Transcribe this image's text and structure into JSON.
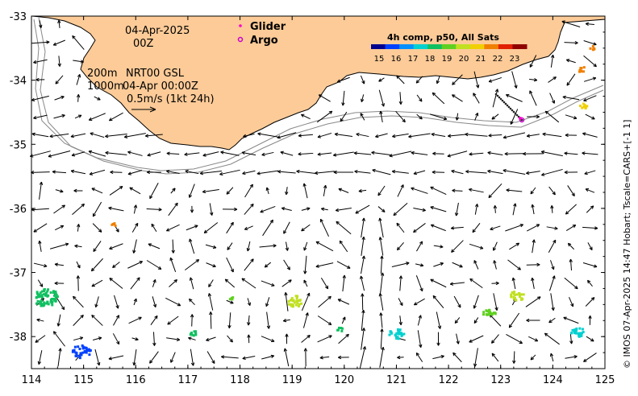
{
  "date_label": "04-Apr-2025",
  "time_label": "00Z",
  "contour_200": "200m",
  "contour_1000": "1000m",
  "product_label": "NRT00 GSL",
  "product_time": "04-Apr 00:00Z",
  "scale_arrow_label": "0.5m/s (1kt 24h)",
  "legend": {
    "glider": "Glider",
    "argo": "Argo",
    "glider_color": "#ff00cc",
    "argo_color": "#cc00cc"
  },
  "colorbar": {
    "title": "4h comp, p50, All Sats",
    "ticks": [
      "15",
      "16",
      "17",
      "18",
      "19",
      "20",
      "21",
      "22",
      "23"
    ],
    "colors": [
      "#00008f",
      "#0040ff",
      "#0090ff",
      "#00d0d0",
      "#10c060",
      "#60d020",
      "#c0e020",
      "#f0d000",
      "#f08000",
      "#e02000",
      "#900000"
    ]
  },
  "axes": {
    "lon_ticks": [
      "114",
      "115",
      "116",
      "117",
      "118",
      "119",
      "120",
      "121",
      "122",
      "123",
      "124",
      "125"
    ],
    "lat_ticks": [
      "-33",
      "-34",
      "-35",
      "-36",
      "-37",
      "-38"
    ],
    "lon_range": [
      114,
      125
    ],
    "lat_range": [
      -38.5,
      -33
    ]
  },
  "credit": "© IMOS 07-Apr-2025 14:47 Hobart; Tscale=CARS+[-1 1]",
  "colors": {
    "land": "#fccb98",
    "coast": "#000000",
    "isobath": "#888888"
  }
}
